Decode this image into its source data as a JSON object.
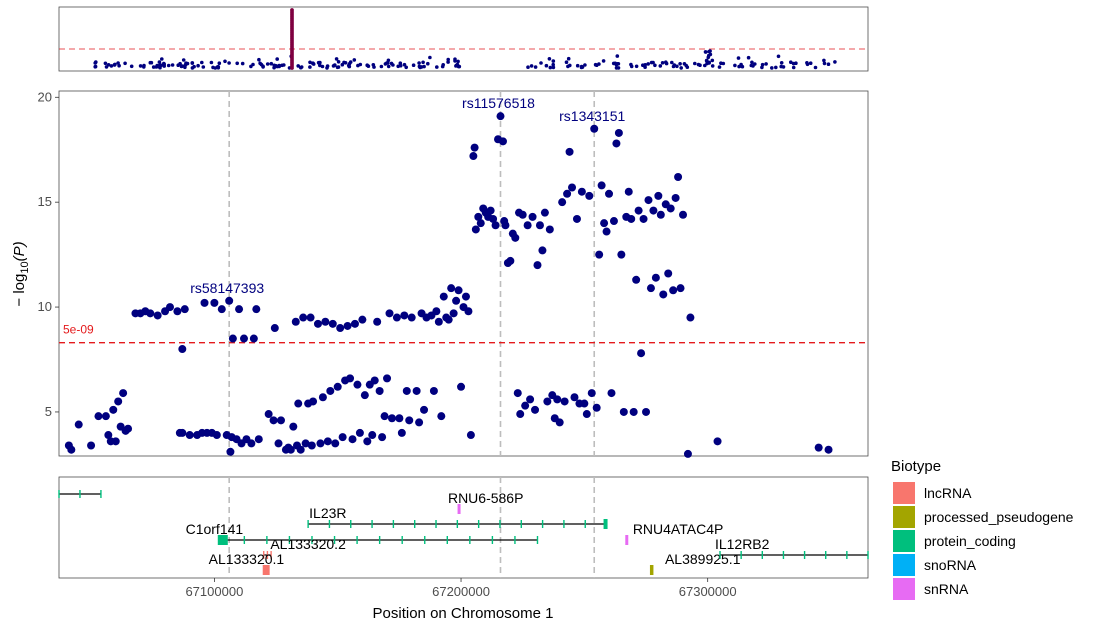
{
  "chart_data": {
    "type": "scatter",
    "xlabel": "Position on Chromosome 1",
    "ylabel": "-log10(P)",
    "ylabel_display": {
      "prefix": "− log",
      "sub": "10",
      "suffix": "(P)"
    },
    "xlim": [
      67037000,
      67365000
    ],
    "ylim": [
      2.9,
      20.3
    ],
    "x_ticks": [
      67100000,
      67200000,
      67300000
    ],
    "x_tick_labels": [
      "67100000",
      "67200000",
      "67300000"
    ],
    "y_ticks": [
      5,
      10,
      15,
      20
    ],
    "y_tick_labels": [
      "5",
      "10",
      "15",
      "20"
    ],
    "point_color": "#00007f",
    "threshold": {
      "value": 8.3,
      "label": "5e-09",
      "color": "#e41a1c"
    },
    "lead_snps": [
      {
        "id": "rs58147393",
        "x": 67106000,
        "y": 10.3
      },
      {
        "id": "rs11576518",
        "x": 67216000,
        "y": 19.1
      },
      {
        "id": "rs1343151",
        "x": 67254000,
        "y": 18.5
      }
    ],
    "vlines_x": [
      67106000,
      67216000,
      67254000
    ],
    "points": [
      [
        67041000,
        3.4
      ],
      [
        67042000,
        3.2
      ],
      [
        67045000,
        4.4
      ],
      [
        67050000,
        3.4
      ],
      [
        67053000,
        4.8
      ],
      [
        67056000,
        4.8
      ],
      [
        67057000,
        3.9
      ],
      [
        67058000,
        3.6
      ],
      [
        67059000,
        5.1
      ],
      [
        67060000,
        3.6
      ],
      [
        67061000,
        5.5
      ],
      [
        67062000,
        4.3
      ],
      [
        67063000,
        5.9
      ],
      [
        67064000,
        4.1
      ],
      [
        67065000,
        4.2
      ],
      [
        67068000,
        9.7
      ],
      [
        67070000,
        9.7
      ],
      [
        67072000,
        9.8
      ],
      [
        67074000,
        9.7
      ],
      [
        67077000,
        9.6
      ],
      [
        67080000,
        9.8
      ],
      [
        67082000,
        10.0
      ],
      [
        67085000,
        9.8
      ],
      [
        67087000,
        8.0
      ],
      [
        67088000,
        9.9
      ],
      [
        67086000,
        4.0
      ],
      [
        67087000,
        4.0
      ],
      [
        67090000,
        3.9
      ],
      [
        67093000,
        3.9
      ],
      [
        67095000,
        4.0
      ],
      [
        67096000,
        10.2
      ],
      [
        67097000,
        4.0
      ],
      [
        67099000,
        4.0
      ],
      [
        67100000,
        10.2
      ],
      [
        67101000,
        3.9
      ],
      [
        67103000,
        9.9
      ],
      [
        67105000,
        3.9
      ],
      [
        67106000,
        10.3
      ],
      [
        67106500,
        3.1
      ],
      [
        67107000,
        3.8
      ],
      [
        67107500,
        8.5
      ],
      [
        67109000,
        3.7
      ],
      [
        67110000,
        9.9
      ],
      [
        67111000,
        3.5
      ],
      [
        67112000,
        8.5
      ],
      [
        67113000,
        3.7
      ],
      [
        67115000,
        3.5
      ],
      [
        67116000,
        8.5
      ],
      [
        67117000,
        9.9
      ],
      [
        67118000,
        3.7
      ],
      [
        67122000,
        4.9
      ],
      [
        67124000,
        4.6
      ],
      [
        67124500,
        9.0
      ],
      [
        67126000,
        3.5
      ],
      [
        67127000,
        4.6
      ],
      [
        67129000,
        3.2
      ],
      [
        67130000,
        3.3
      ],
      [
        67131000,
        3.2
      ],
      [
        67132000,
        4.3
      ],
      [
        67133000,
        9.3
      ],
      [
        67133500,
        3.4
      ],
      [
        67134000,
        5.4
      ],
      [
        67135000,
        3.2
      ],
      [
        67136000,
        9.5
      ],
      [
        67137000,
        3.5
      ],
      [
        67138000,
        5.4
      ],
      [
        67139000,
        9.5
      ],
      [
        67139500,
        3.4
      ],
      [
        67140000,
        5.5
      ],
      [
        67142000,
        9.2
      ],
      [
        67143000,
        3.5
      ],
      [
        67144000,
        5.7
      ],
      [
        67145000,
        9.3
      ],
      [
        67146000,
        3.6
      ],
      [
        67147000,
        6.0
      ],
      [
        67148000,
        9.2
      ],
      [
        67149000,
        3.5
      ],
      [
        67150000,
        6.2
      ],
      [
        67151000,
        9.0
      ],
      [
        67152000,
        3.8
      ],
      [
        67153000,
        6.5
      ],
      [
        67154000,
        9.1
      ],
      [
        67155000,
        6.6
      ],
      [
        67156000,
        3.7
      ],
      [
        67157000,
        9.2
      ],
      [
        67158000,
        6.3
      ],
      [
        67159000,
        4.0
      ],
      [
        67160000,
        9.4
      ],
      [
        67161000,
        5.8
      ],
      [
        67162000,
        3.6
      ],
      [
        67163000,
        6.3
      ],
      [
        67164000,
        3.9
      ],
      [
        67165000,
        6.5
      ],
      [
        67166000,
        9.3
      ],
      [
        67167000,
        6.0
      ],
      [
        67168000,
        3.8
      ],
      [
        67169000,
        4.8
      ],
      [
        67170000,
        6.6
      ],
      [
        67171000,
        9.7
      ],
      [
        67172000,
        4.7
      ],
      [
        67174000,
        9.5
      ],
      [
        67175000,
        4.7
      ],
      [
        67176000,
        4.0
      ],
      [
        67177000,
        9.6
      ],
      [
        67178000,
        6.0
      ],
      [
        67179000,
        4.6
      ],
      [
        67180000,
        9.5
      ],
      [
        67182000,
        6.0
      ],
      [
        67183000,
        4.5
      ],
      [
        67184000,
        9.7
      ],
      [
        67185000,
        5.1
      ],
      [
        67186000,
        9.5
      ],
      [
        67188000,
        9.6
      ],
      [
        67189000,
        6.0
      ],
      [
        67190000,
        9.8
      ],
      [
        67191000,
        9.3
      ],
      [
        67192000,
        4.8
      ],
      [
        67193000,
        10.5
      ],
      [
        67194000,
        9.5
      ],
      [
        67195000,
        9.4
      ],
      [
        67196000,
        10.9
      ],
      [
        67197000,
        9.7
      ],
      [
        67198000,
        10.3
      ],
      [
        67199000,
        10.8
      ],
      [
        67200000,
        6.2
      ],
      [
        67201000,
        10.0
      ],
      [
        67202000,
        10.5
      ],
      [
        67203000,
        9.8
      ],
      [
        67204000,
        3.9
      ],
      [
        67205000,
        17.2
      ],
      [
        67205500,
        17.6
      ],
      [
        67206000,
        13.7
      ],
      [
        67207000,
        14.3
      ],
      [
        67208000,
        14.0
      ],
      [
        67209000,
        14.7
      ],
      [
        67210000,
        14.5
      ],
      [
        67211000,
        14.3
      ],
      [
        67212000,
        14.6
      ],
      [
        67213000,
        14.2
      ],
      [
        67214000,
        13.9
      ],
      [
        67215000,
        18.0
      ],
      [
        67216000,
        19.1
      ],
      [
        67217000,
        17.9
      ],
      [
        67217500,
        14.1
      ],
      [
        67218000,
        13.9
      ],
      [
        67219000,
        12.1
      ],
      [
        67220000,
        12.2
      ],
      [
        67221000,
        13.5
      ],
      [
        67222000,
        13.3
      ],
      [
        67223000,
        5.9
      ],
      [
        67223500,
        14.5
      ],
      [
        67224000,
        4.9
      ],
      [
        67225000,
        14.4
      ],
      [
        67226000,
        5.3
      ],
      [
        67227000,
        13.9
      ],
      [
        67228000,
        5.6
      ],
      [
        67229000,
        14.3
      ],
      [
        67230000,
        5.1
      ],
      [
        67231000,
        12.0
      ],
      [
        67232000,
        13.9
      ],
      [
        67233000,
        12.7
      ],
      [
        67234000,
        14.5
      ],
      [
        67235000,
        5.5
      ],
      [
        67236000,
        13.7
      ],
      [
        67237000,
        5.8
      ],
      [
        67238000,
        4.7
      ],
      [
        67239000,
        5.6
      ],
      [
        67240000,
        4.5
      ],
      [
        67241000,
        15.0
      ],
      [
        67242000,
        5.5
      ],
      [
        67243000,
        15.4
      ],
      [
        67244000,
        17.4
      ],
      [
        67245000,
        15.7
      ],
      [
        67246000,
        5.7
      ],
      [
        67247000,
        14.2
      ],
      [
        67248000,
        5.4
      ],
      [
        67249000,
        15.5
      ],
      [
        67250000,
        5.4
      ],
      [
        67251000,
        4.9
      ],
      [
        67252000,
        15.3
      ],
      [
        67253000,
        5.9
      ],
      [
        67254000,
        18.5
      ],
      [
        67255000,
        5.2
      ],
      [
        67256000,
        12.5
      ],
      [
        67257000,
        15.8
      ],
      [
        67258000,
        14.0
      ],
      [
        67259000,
        13.6
      ],
      [
        67260000,
        15.4
      ],
      [
        67261000,
        5.9
      ],
      [
        67262000,
        14.1
      ],
      [
        67263000,
        17.8
      ],
      [
        67264000,
        18.3
      ],
      [
        67265000,
        12.5
      ],
      [
        67266000,
        5.0
      ],
      [
        67267000,
        14.3
      ],
      [
        67268000,
        15.5
      ],
      [
        67269000,
        14.2
      ],
      [
        67270000,
        5.0
      ],
      [
        67271000,
        11.3
      ],
      [
        67272000,
        14.6
      ],
      [
        67273000,
        7.8
      ],
      [
        67274000,
        14.2
      ],
      [
        67275000,
        5.0
      ],
      [
        67276000,
        15.1
      ],
      [
        67277000,
        10.9
      ],
      [
        67278000,
        14.6
      ],
      [
        67279000,
        11.4
      ],
      [
        67280000,
        15.3
      ],
      [
        67281000,
        14.4
      ],
      [
        67282000,
        10.6
      ],
      [
        67283000,
        14.9
      ],
      [
        67284000,
        11.6
      ],
      [
        67285000,
        14.7
      ],
      [
        67286000,
        10.8
      ],
      [
        67287000,
        15.2
      ],
      [
        67288000,
        16.2
      ],
      [
        67289000,
        10.9
      ],
      [
        67290000,
        14.4
      ],
      [
        67292000,
        3.0
      ],
      [
        67293000,
        9.5
      ],
      [
        67304000,
        3.6
      ],
      [
        67345000,
        3.3
      ],
      [
        67349000,
        3.2
      ]
    ]
  },
  "manhattan": {
    "threshold_color": "#e41a1c",
    "peak_color": "#7f0040",
    "point_color": "#00007f"
  },
  "genes": [
    {
      "name": "C1orf141",
      "biotype": "protein_coding",
      "start": 67103000,
      "end": 67231000,
      "row": 3,
      "label_x": 67100000,
      "label_anchor": "middle"
    },
    {
      "name": "IL23R",
      "biotype": "protein_coding",
      "start": 67138000,
      "end": 67259000,
      "row": 2,
      "label_x": 67146000,
      "label_anchor": "middle"
    },
    {
      "name": "RNU6-586P",
      "biotype": "snRNA",
      "start": 67199000,
      "end": 67199400,
      "row": 1,
      "label_x": 67210000,
      "label_anchor": "middle"
    },
    {
      "name": "RNU4ATAC4P",
      "biotype": "snRNA",
      "start": 67267000,
      "end": 67267400,
      "row": 3,
      "label_x": 67288000,
      "label_anchor": "middle"
    },
    {
      "name": "AL133320.2",
      "biotype": "lncRNA",
      "start": 67120000,
      "end": 67123000,
      "row": 4,
      "label_x": 67138000,
      "label_anchor": "middle"
    },
    {
      "name": "AL133320.1",
      "biotype": "lncRNA",
      "start": 67120000,
      "end": 67122000,
      "row": 5,
      "label_x": 67113000,
      "label_anchor": "middle"
    },
    {
      "name": "AL389925.1",
      "biotype": "processed_pseudogene",
      "start": 67277000,
      "end": 67277600,
      "row": 5,
      "label_x": 67298000,
      "label_anchor": "middle"
    },
    {
      "name": "IL12RB2",
      "biotype": "protein_coding",
      "start": 67305000,
      "end": 67365000,
      "row": 4,
      "label_x": 67314000,
      "label_anchor": "middle"
    },
    {
      "name": "",
      "biotype": "protein_coding",
      "start": 67037000,
      "end": 67054000,
      "row": 0,
      "label_x": 67045000,
      "label_anchor": "middle"
    }
  ],
  "legend": {
    "title": "Biotype",
    "items": [
      {
        "label": "lncRNA",
        "color": "#f8766d"
      },
      {
        "label": "processed_pseudogene",
        "color": "#a3a500"
      },
      {
        "label": "protein_coding",
        "color": "#00bf7d"
      },
      {
        "label": "snoRNA",
        "color": "#00b0f6"
      },
      {
        "label": "snRNA",
        "color": "#e76bf3"
      }
    ]
  }
}
